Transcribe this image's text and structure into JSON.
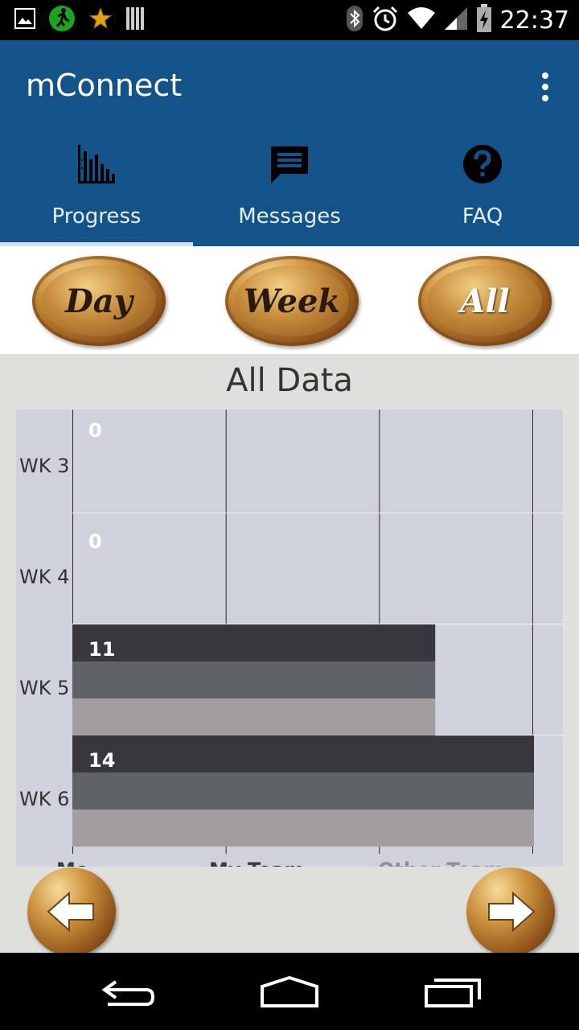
{
  "status_bar": {
    "time": "22:37",
    "left_icons": [
      "image-icon",
      "runner-app-icon",
      "star-icon",
      "barcode-icon"
    ],
    "right_icons": [
      "bluetooth-icon",
      "alarm-icon",
      "wifi-icon",
      "signal-icon",
      "battery-charging-icon"
    ]
  },
  "app_bar": {
    "title": "mConnect",
    "background": "#135389"
  },
  "tabs": [
    {
      "label": "Progress",
      "icon": "bar-chart-icon",
      "selected": true
    },
    {
      "label": "Messages",
      "icon": "message-icon",
      "selected": false
    },
    {
      "label": "FAQ",
      "icon": "help-icon",
      "selected": false
    }
  ],
  "range_buttons": [
    {
      "label": "Day"
    },
    {
      "label": "Week"
    },
    {
      "label": "All"
    }
  ],
  "chart_data": {
    "type": "bar",
    "orientation": "horizontal",
    "title": "All Data",
    "categories": [
      "WK 3",
      "WK 4",
      "WK 5",
      "WK 6"
    ],
    "value_labels": [
      "0",
      "0",
      "11",
      "14"
    ],
    "series": [
      {
        "name": "Me",
        "values": [
          0,
          0,
          11,
          14
        ],
        "color": "#3a363e"
      },
      {
        "name": "My Team",
        "values": [
          0,
          0,
          11,
          14
        ],
        "color": "#5f6266"
      },
      {
        "name": "Other Team",
        "values": [
          0,
          0,
          11,
          14
        ],
        "color": "#a29e9f"
      }
    ],
    "xlim": [
      0,
      14
    ],
    "grid": true,
    "legend": "bottom",
    "background": "#cfd2dd"
  },
  "nav": {
    "prev_icon": "arrow-left-icon",
    "next_icon": "arrow-right-icon"
  },
  "system_nav": [
    "back-icon",
    "home-icon",
    "recents-icon"
  ]
}
